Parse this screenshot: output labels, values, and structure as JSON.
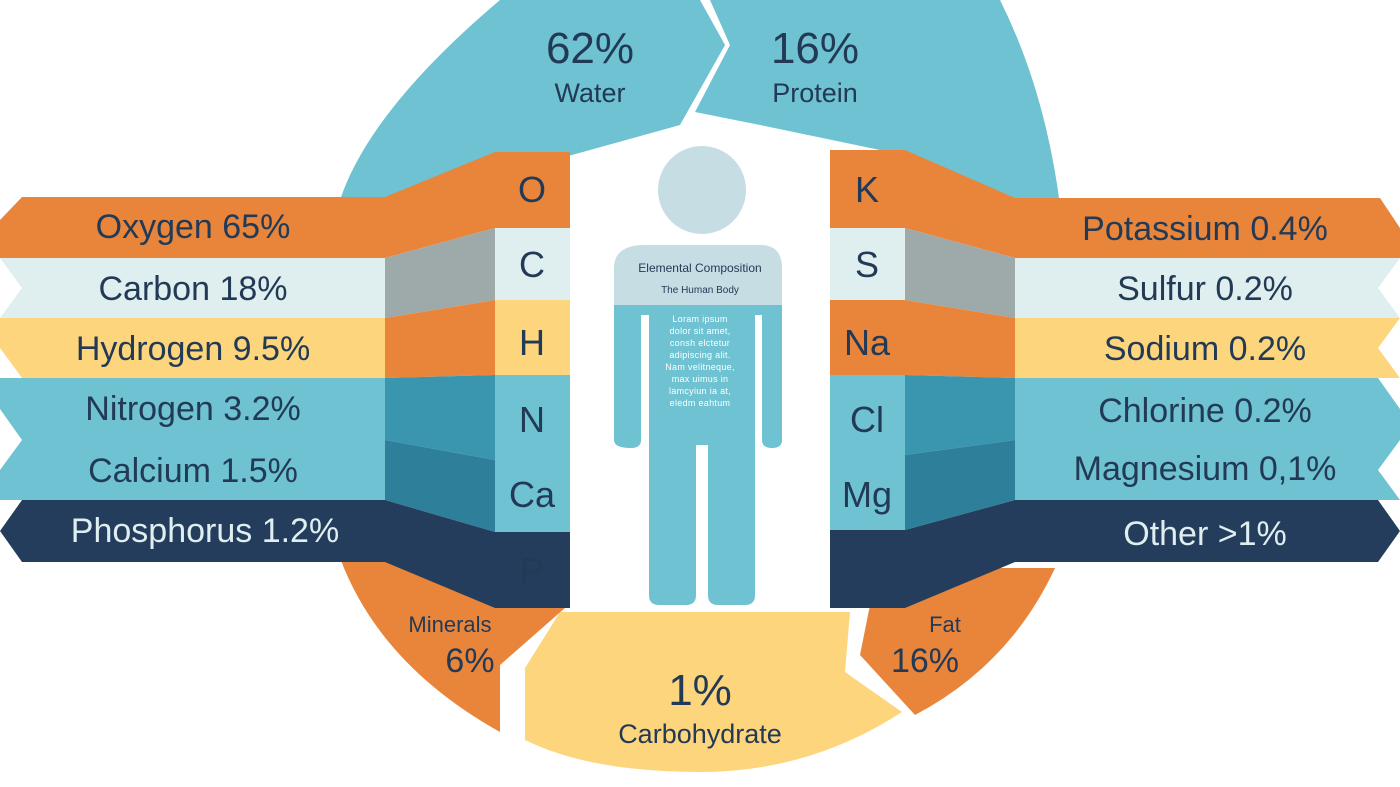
{
  "colors": {
    "water": "#6ec2d1",
    "orange": "#e9853b",
    "yellow": "#fdd57c",
    "light": "#dfeeee",
    "teal": "#6ec2d1",
    "teal_dark": "#3a95ae",
    "navy": "#253d5c",
    "body": "#6ec2d1",
    "head": "#c7dde4"
  },
  "segments": {
    "water": {
      "value": "62%",
      "label": "Water"
    },
    "protein": {
      "value": "16%",
      "label": "Protein"
    },
    "minerals": {
      "value": "6%",
      "label": "Minerals"
    },
    "fat": {
      "value": "16%",
      "label": "Fat"
    },
    "carbohydrate": {
      "value": "1%",
      "label": "Carbohydrate"
    }
  },
  "left_elements": [
    {
      "label": "Oxygen 65%",
      "symbol": "O"
    },
    {
      "label": "Carbon 18%",
      "symbol": "C"
    },
    {
      "label": "Hydrogen 9.5%",
      "symbol": "H"
    },
    {
      "label": "Nitrogen 3.2%",
      "symbol": "N"
    },
    {
      "label": "Calcium 1.5%",
      "symbol": "Ca"
    },
    {
      "label": "Phosphorus 1.2%",
      "symbol": "P"
    }
  ],
  "right_elements": [
    {
      "label": "Potassium 0.4%",
      "symbol": "K"
    },
    {
      "label": "Sulfur 0.2%",
      "symbol": "S"
    },
    {
      "label": "Sodium 0.2%",
      "symbol": "Na"
    },
    {
      "label": "Chlorine 0.2%",
      "symbol": "Cl"
    },
    {
      "label": "Magnesium 0,1%",
      "symbol": "Mg"
    },
    {
      "label": "Other >1%",
      "symbol": ""
    }
  ],
  "body": {
    "title": "Elemental Composition",
    "subtitle": "The Human Body",
    "lorem": [
      "Loram ipsum",
      "dolor sit amet,",
      "consh elctetur",
      "adipiscing alit.",
      "Nam velitneque,",
      "max uimus in",
      "lamcyiun ia at,",
      "eledm eahtum"
    ]
  }
}
